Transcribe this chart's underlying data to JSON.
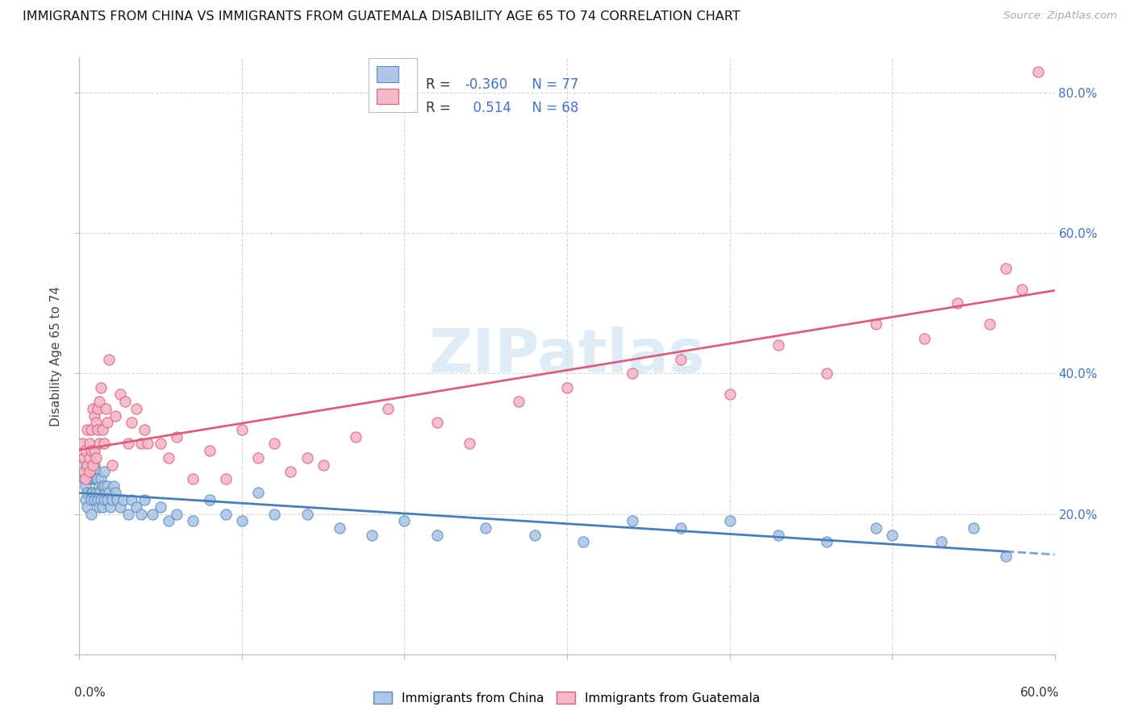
{
  "title": "IMMIGRANTS FROM CHINA VS IMMIGRANTS FROM GUATEMALA DISABILITY AGE 65 TO 74 CORRELATION CHART",
  "source": "Source: ZipAtlas.com",
  "ylabel": "Disability Age 65 to 74",
  "xlim": [
    0.0,
    0.6
  ],
  "ylim": [
    0.0,
    0.85
  ],
  "china_color": "#aec6e8",
  "china_edge": "#5b8db8",
  "china_line": "#4a7fb5",
  "guatemala_color": "#f5b8c8",
  "guatemala_edge": "#d9607a",
  "guatemala_line": "#d9607a",
  "legend_text_color": "#4472c4",
  "right_axis_color": "#4472c4",
  "grid_color": "#cccccc",
  "watermark_color": "#d0e4f5",
  "china_R": -0.36,
  "china_N": 77,
  "guatemala_R": 0.514,
  "guatemala_N": 68,
  "china_x": [
    0.002,
    0.003,
    0.004,
    0.004,
    0.005,
    0.005,
    0.005,
    0.006,
    0.006,
    0.007,
    0.007,
    0.007,
    0.008,
    0.008,
    0.008,
    0.009,
    0.009,
    0.009,
    0.01,
    0.01,
    0.01,
    0.011,
    0.011,
    0.012,
    0.012,
    0.012,
    0.013,
    0.013,
    0.014,
    0.014,
    0.015,
    0.015,
    0.015,
    0.016,
    0.017,
    0.017,
    0.018,
    0.019,
    0.02,
    0.021,
    0.022,
    0.023,
    0.025,
    0.027,
    0.03,
    0.032,
    0.035,
    0.038,
    0.04,
    0.045,
    0.05,
    0.055,
    0.06,
    0.07,
    0.08,
    0.09,
    0.1,
    0.11,
    0.12,
    0.14,
    0.16,
    0.18,
    0.2,
    0.22,
    0.25,
    0.28,
    0.31,
    0.34,
    0.37,
    0.4,
    0.43,
    0.46,
    0.49,
    0.5,
    0.53,
    0.55,
    0.57
  ],
  "china_y": [
    0.27,
    0.25,
    0.24,
    0.22,
    0.26,
    0.23,
    0.21,
    0.27,
    0.25,
    0.23,
    0.22,
    0.2,
    0.26,
    0.25,
    0.23,
    0.27,
    0.25,
    0.22,
    0.26,
    0.25,
    0.23,
    0.25,
    0.22,
    0.24,
    0.23,
    0.21,
    0.25,
    0.22,
    0.24,
    0.21,
    0.26,
    0.24,
    0.22,
    0.23,
    0.24,
    0.22,
    0.23,
    0.21,
    0.22,
    0.24,
    0.23,
    0.22,
    0.21,
    0.22,
    0.2,
    0.22,
    0.21,
    0.2,
    0.22,
    0.2,
    0.21,
    0.19,
    0.2,
    0.19,
    0.22,
    0.2,
    0.19,
    0.23,
    0.2,
    0.2,
    0.18,
    0.17,
    0.19,
    0.17,
    0.18,
    0.17,
    0.16,
    0.19,
    0.18,
    0.19,
    0.17,
    0.16,
    0.18,
    0.17,
    0.16,
    0.18,
    0.14
  ],
  "guatemala_x": [
    0.002,
    0.003,
    0.003,
    0.004,
    0.004,
    0.005,
    0.005,
    0.006,
    0.006,
    0.006,
    0.007,
    0.007,
    0.008,
    0.008,
    0.009,
    0.009,
    0.01,
    0.01,
    0.011,
    0.011,
    0.012,
    0.012,
    0.013,
    0.014,
    0.015,
    0.016,
    0.017,
    0.018,
    0.02,
    0.022,
    0.025,
    0.028,
    0.03,
    0.032,
    0.035,
    0.038,
    0.04,
    0.042,
    0.05,
    0.055,
    0.06,
    0.07,
    0.08,
    0.09,
    0.1,
    0.11,
    0.12,
    0.13,
    0.14,
    0.15,
    0.17,
    0.19,
    0.22,
    0.24,
    0.27,
    0.3,
    0.34,
    0.37,
    0.4,
    0.43,
    0.46,
    0.49,
    0.52,
    0.54,
    0.56,
    0.57,
    0.58,
    0.59
  ],
  "guatemala_y": [
    0.3,
    0.26,
    0.28,
    0.25,
    0.29,
    0.27,
    0.32,
    0.28,
    0.26,
    0.3,
    0.29,
    0.32,
    0.27,
    0.35,
    0.29,
    0.34,
    0.28,
    0.33,
    0.35,
    0.32,
    0.3,
    0.36,
    0.38,
    0.32,
    0.3,
    0.35,
    0.33,
    0.42,
    0.27,
    0.34,
    0.37,
    0.36,
    0.3,
    0.33,
    0.35,
    0.3,
    0.32,
    0.3,
    0.3,
    0.28,
    0.31,
    0.25,
    0.29,
    0.25,
    0.32,
    0.28,
    0.3,
    0.26,
    0.28,
    0.27,
    0.31,
    0.35,
    0.33,
    0.3,
    0.36,
    0.38,
    0.4,
    0.42,
    0.37,
    0.44,
    0.4,
    0.47,
    0.45,
    0.5,
    0.47,
    0.55,
    0.52,
    0.83
  ]
}
